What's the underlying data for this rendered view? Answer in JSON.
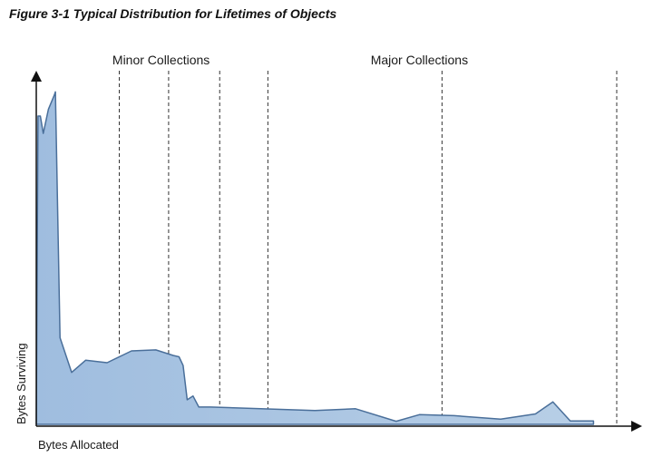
{
  "figure": {
    "title": "Figure 3-1 Typical Distribution for Lifetimes of Objects"
  },
  "chart_data": {
    "type": "area",
    "title": "Figure 3-1 Typical Distribution for Lifetimes of Objects",
    "xlabel": "Bytes Allocated",
    "ylabel": "Bytes Surviving",
    "xlim": [
      0,
      100
    ],
    "ylim": [
      0,
      100
    ],
    "grid": false,
    "legend": "none",
    "fill_color": "#b8cfe6",
    "line_color": "#4a6f9a",
    "divider_color": "#333333",
    "series": [
      {
        "x": [
          0,
          0.3,
          0.7,
          1.2,
          2.1,
          3.1,
          3.3,
          4.1,
          6.1,
          8.5,
          12.2,
          16.4,
          20.6,
          23.6,
          24.6,
          25.3,
          26.0,
          27.0,
          28.0,
          30.0,
          48.0,
          55.0,
          62.0,
          66.0,
          72.0,
          80.0,
          86.0,
          89.0,
          92.0,
          96.0
        ],
        "y": [
          0,
          89,
          89,
          84,
          91,
          95,
          96,
          25,
          15,
          18.5,
          17.8,
          21.2,
          21.5,
          19.9,
          19.5,
          17,
          7.1,
          8.2,
          5,
          5,
          4,
          4.5,
          0.9,
          2.8,
          2.5,
          1.5,
          3,
          6.5,
          1,
          1
        ]
      }
    ],
    "dividers": [
      14.3,
      22.8,
      31.6,
      39.9,
      69.9,
      100
    ],
    "regions": [
      {
        "label": "Minor Collections",
        "x": 21.5
      },
      {
        "label": "Major Collections",
        "x": 66.0
      }
    ]
  }
}
